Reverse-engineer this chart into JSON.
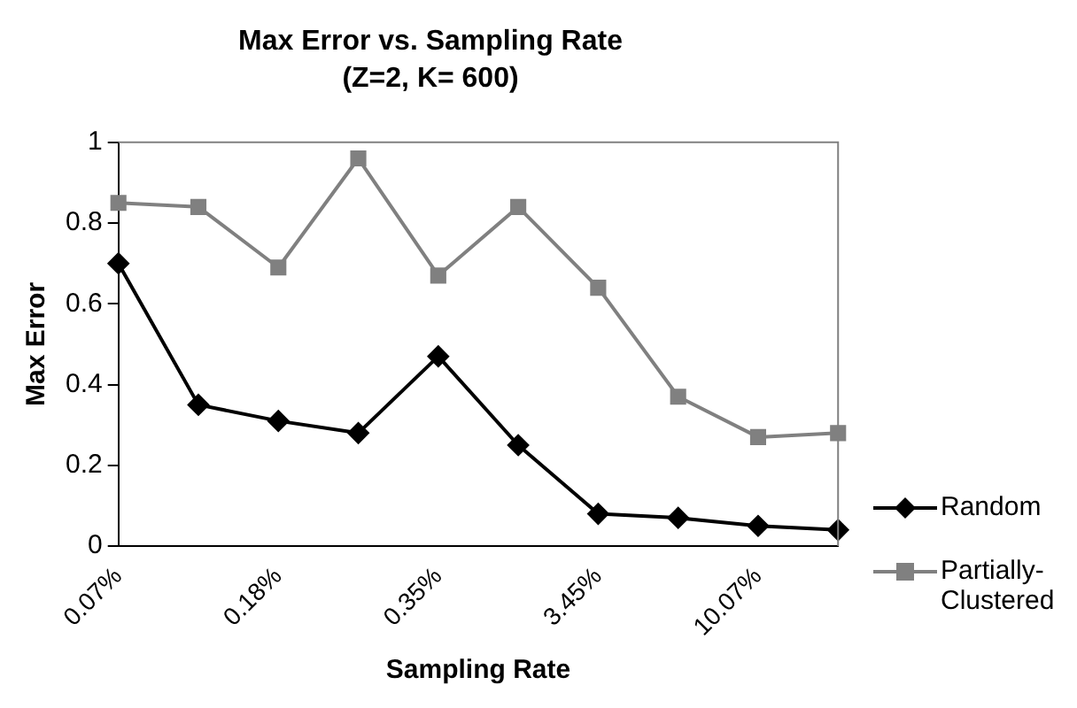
{
  "chart_data": {
    "type": "line",
    "title": "Max Error vs. Sampling Rate",
    "subtitle": "(Z=2, K= 600)",
    "xlabel": "Sampling Rate",
    "ylabel": "Max Error",
    "categories": [
      "0.07%",
      null,
      "0.18%",
      null,
      "0.35%",
      null,
      "3.45%",
      null,
      "10.07%",
      null
    ],
    "series": [
      {
        "name": "Random",
        "color": "#000000",
        "marker": "diamond",
        "values": [
          0.7,
          0.35,
          0.31,
          0.28,
          0.47,
          0.25,
          0.08,
          0.07,
          0.05,
          0.04
        ]
      },
      {
        "name": "Partially-Clustered",
        "color": "#808080",
        "marker": "square",
        "values": [
          0.85,
          0.84,
          0.69,
          0.96,
          0.67,
          0.84,
          0.64,
          0.37,
          0.27,
          0.28
        ]
      }
    ],
    "ylim": [
      0,
      1
    ],
    "yticks": [
      0,
      0.2,
      0.4,
      0.6,
      0.8,
      1
    ],
    "grid": false,
    "legend": "right"
  }
}
